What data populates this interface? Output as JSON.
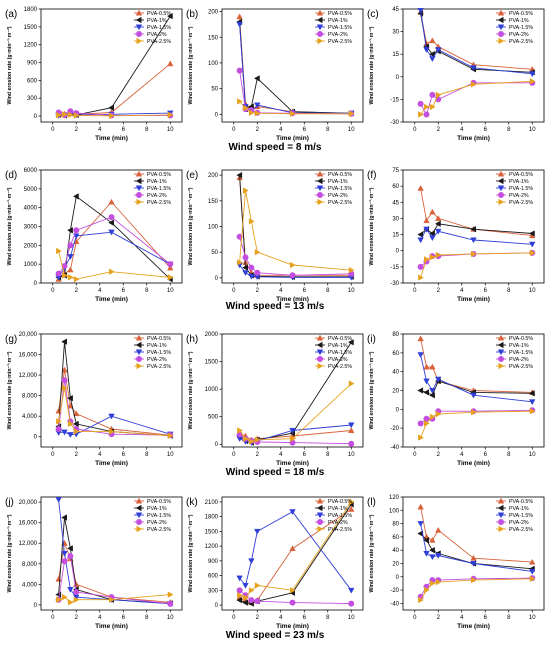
{
  "row_captions": [
    "Wind speed = 8 m/s",
    "Wind speed = 13 m/s",
    "Wind speed = 18 m/s",
    "Wind speed = 23 m/s"
  ],
  "colors": {
    "PVA-0.5%": "#d9623b",
    "PVA-1%": "#1a1a1a",
    "PVA-1.5%": "#2f3fd8",
    "PVA-2%": "#c44ee0",
    "PVA-2.5%": "#e6a21f"
  },
  "markers": {
    "PVA-0.5%": "triangle-up-icon",
    "PVA-1%": "triangle-left-icon",
    "PVA-1.5%": "triangle-down-icon",
    "PVA-2%": "circle-icon",
    "PVA-2.5%": "triangle-right-icon"
  },
  "chart_data": [
    {
      "panel": "(a)",
      "type": "line",
      "xlabel": "Time (min)",
      "ylabel": "Wind erosion rate (g·min⁻¹·m⁻²)",
      "xlim": [
        -1,
        11
      ],
      "ylim": [
        -100,
        1800
      ],
      "xticks": [
        0,
        2,
        4,
        6,
        8,
        10
      ],
      "yticks": [
        0,
        300,
        600,
        900,
        1200,
        1500,
        1800
      ],
      "yticklabels": [
        "0",
        "300",
        "600",
        "900",
        "1200",
        "1500",
        "1800"
      ],
      "x": [
        0.5,
        1,
        1.5,
        2,
        5,
        10
      ],
      "series": [
        {
          "name": "PVA-0.5%",
          "values": [
            20,
            35,
            40,
            30,
            60,
            880
          ]
        },
        {
          "name": "PVA-1%",
          "values": [
            30,
            10,
            50,
            20,
            140,
            1680
          ]
        },
        {
          "name": "PVA-1.5%",
          "values": [
            10,
            20,
            60,
            15,
            30,
            50
          ]
        },
        {
          "name": "PVA-2%",
          "values": [
            60,
            15,
            80,
            50,
            10,
            10
          ]
        },
        {
          "name": "PVA-2.5%",
          "values": [
            15,
            30,
            20,
            10,
            5,
            20
          ]
        }
      ]
    },
    {
      "panel": "(b)",
      "type": "line",
      "xlabel": "Time (min)",
      "ylabel": "Wind erosion rate (g·min⁻¹·m⁻²)",
      "xlim": [
        -1,
        11
      ],
      "ylim": [
        -15,
        205
      ],
      "xticks": [
        0,
        2,
        4,
        6,
        8,
        10
      ],
      "yticks": [
        0,
        50,
        100,
        150,
        200
      ],
      "yticklabels": [
        "0",
        "50",
        "100",
        "150",
        "200"
      ],
      "x": [
        0.5,
        1,
        1.5,
        2,
        5,
        10
      ],
      "series": [
        {
          "name": "PVA-0.5%",
          "values": [
            190,
            20,
            10,
            15,
            5,
            2
          ]
        },
        {
          "name": "PVA-1%",
          "values": [
            180,
            10,
            15,
            70,
            5,
            2
          ]
        },
        {
          "name": "PVA-1.5%",
          "values": [
            175,
            15,
            5,
            18,
            3,
            2
          ]
        },
        {
          "name": "PVA-2%",
          "values": [
            85,
            10,
            8,
            3,
            2,
            1
          ]
        },
        {
          "name": "PVA-2.5%",
          "values": [
            25,
            12,
            3,
            2,
            1,
            1
          ]
        }
      ]
    },
    {
      "panel": "(c)",
      "type": "line",
      "xlabel": "Time (min)",
      "ylabel": "Wind erosion rate (g·min⁻¹·m⁻²)",
      "xlim": [
        -1,
        11
      ],
      "ylim": [
        -30,
        45
      ],
      "xticks": [
        0,
        2,
        4,
        6,
        8,
        10
      ],
      "yticks": [
        -30,
        -15,
        0,
        15,
        30,
        45
      ],
      "yticklabels": [
        "-30",
        "-15",
        "0",
        "15",
        "30",
        "45"
      ],
      "x": [
        0.5,
        1,
        1.5,
        2,
        5,
        10
      ],
      "series": [
        {
          "name": "PVA-0.5%",
          "values": [
            43,
            22,
            24,
            20,
            8,
            5
          ]
        },
        {
          "name": "PVA-1%",
          "values": [
            42,
            20,
            15,
            17,
            5,
            3
          ]
        },
        {
          "name": "PVA-1.5%",
          "values": [
            44,
            18,
            12,
            18,
            6,
            2
          ]
        },
        {
          "name": "PVA-2%",
          "values": [
            -18,
            -25,
            -12,
            -15,
            -4,
            -4
          ]
        },
        {
          "name": "PVA-2.5%",
          "values": [
            -25,
            -20,
            -20,
            -12,
            -5,
            -3
          ]
        }
      ]
    },
    {
      "panel": "(d)",
      "type": "line",
      "xlabel": "Time (min)",
      "ylabel": "Wind erosion rate (g·min⁻¹·m⁻²)",
      "xlim": [
        -1,
        11
      ],
      "ylim": [
        0,
        6000
      ],
      "xticks": [
        0,
        2,
        4,
        6,
        8,
        10
      ],
      "yticks": [
        0,
        1000,
        2000,
        3000,
        4000,
        5000,
        6000
      ],
      "yticklabels": [
        "0",
        "1000",
        "2000",
        "3000",
        "4000",
        "5000",
        "6000"
      ],
      "x": [
        0.5,
        1,
        1.5,
        2,
        5,
        10
      ],
      "series": [
        {
          "name": "PVA-0.5%",
          "values": [
            200,
            500,
            700,
            2200,
            4300,
            800
          ]
        },
        {
          "name": "PVA-1%",
          "values": [
            300,
            400,
            2800,
            4600,
            3200,
            200
          ]
        },
        {
          "name": "PVA-1.5%",
          "values": [
            300,
            800,
            1400,
            2500,
            2700,
            1000
          ]
        },
        {
          "name": "PVA-2%",
          "values": [
            500,
            900,
            2000,
            2800,
            3500,
            1000
          ]
        },
        {
          "name": "PVA-2.5%",
          "values": [
            1700,
            400,
            300,
            200,
            600,
            300
          ]
        }
      ]
    },
    {
      "panel": "(e)",
      "type": "line",
      "xlabel": "Time (min)",
      "ylabel": "Wind erosion rate (g·min⁻¹·m⁻²)",
      "xlim": [
        -1,
        11
      ],
      "ylim": [
        -10,
        210
      ],
      "xticks": [
        0,
        2,
        4,
        6,
        8,
        10
      ],
      "yticks": [
        0,
        50,
        100,
        150,
        200
      ],
      "yticklabels": [
        "0",
        "50",
        "100",
        "150",
        "200"
      ],
      "x": [
        0.5,
        1,
        1.5,
        2,
        5,
        10
      ],
      "series": [
        {
          "name": "PVA-0.5%",
          "values": [
            195,
            30,
            10,
            5,
            5,
            5
          ]
        },
        {
          "name": "PVA-1%",
          "values": [
            200,
            20,
            5,
            3,
            2,
            2
          ]
        },
        {
          "name": "PVA-1.5%",
          "values": [
            25,
            10,
            3,
            2,
            1,
            1
          ]
        },
        {
          "name": "PVA-2%",
          "values": [
            80,
            40,
            20,
            10,
            5,
            8
          ]
        },
        {
          "name": "PVA-2.5%",
          "values": [
            30,
            170,
            110,
            50,
            25,
            15
          ]
        }
      ]
    },
    {
      "panel": "(f)",
      "type": "line",
      "xlabel": "Time (min)",
      "ylabel": "Wind erosion rate (g·min⁻¹·m⁻²)",
      "xlim": [
        -1,
        11
      ],
      "ylim": [
        -30,
        75
      ],
      "xticks": [
        0,
        2,
        4,
        6,
        8,
        10
      ],
      "yticks": [
        -30,
        -15,
        0,
        15,
        30,
        45,
        60,
        75
      ],
      "yticklabels": [
        "-30",
        "-15",
        "0",
        "15",
        "30",
        "45",
        "60",
        "75"
      ],
      "x": [
        0.5,
        1,
        1.5,
        2,
        5,
        10
      ],
      "series": [
        {
          "name": "PVA-0.5%",
          "values": [
            58,
            28,
            36,
            30,
            20,
            14
          ]
        },
        {
          "name": "PVA-1%",
          "values": [
            15,
            20,
            16,
            25,
            20,
            16
          ]
        },
        {
          "name": "PVA-1.5%",
          "values": [
            10,
            20,
            12,
            18,
            10,
            6
          ]
        },
        {
          "name": "PVA-2%",
          "values": [
            -15,
            -10,
            -5,
            -5,
            -3,
            -2
          ]
        },
        {
          "name": "PVA-2.5%",
          "values": [
            -25,
            -8,
            -6,
            -4,
            -3,
            -2
          ]
        }
      ]
    },
    {
      "panel": "(g)",
      "type": "line",
      "xlabel": "Time (min)",
      "ylabel": "Wind erosion rate (g·min⁻¹·m⁻²)",
      "xlim": [
        -1,
        11
      ],
      "ylim": [
        -2000,
        20000
      ],
      "xticks": [
        0,
        2,
        4,
        6,
        8,
        10
      ],
      "yticks": [
        0,
        4000,
        8000,
        12000,
        16000,
        20000
      ],
      "yticklabels": [
        "0",
        "4,000",
        "8,000",
        "12,000",
        "16,000",
        "20,000"
      ],
      "x": [
        0.5,
        1,
        1.5,
        2,
        5,
        10
      ],
      "series": [
        {
          "name": "PVA-0.5%",
          "values": [
            5000,
            13000,
            6000,
            4500,
            1500,
            300
          ]
        },
        {
          "name": "PVA-1%",
          "values": [
            2000,
            18500,
            7500,
            2500,
            1000,
            200
          ]
        },
        {
          "name": "PVA-1.5%",
          "values": [
            800,
            900,
            400,
            500,
            4000,
            500
          ]
        },
        {
          "name": "PVA-2%",
          "values": [
            1500,
            11000,
            3000,
            1500,
            500,
            300
          ]
        },
        {
          "name": "PVA-2.5%",
          "values": [
            3000,
            9500,
            2500,
            1000,
            1000,
            200
          ]
        }
      ]
    },
    {
      "panel": "(h)",
      "type": "line",
      "xlabel": "Time (min)",
      "ylabel": "Wind erosion rate (g·min⁻¹·m⁻²)",
      "xlim": [
        -1,
        11
      ],
      "ylim": [
        -50,
        2000
      ],
      "xticks": [
        0,
        2,
        4,
        6,
        8,
        10
      ],
      "yticks": [
        0,
        500,
        1000,
        1500,
        2000
      ],
      "yticklabels": [
        "0",
        "500",
        "1000",
        "1500",
        "2000"
      ],
      "x": [
        0.5,
        1,
        1.5,
        2,
        5,
        10
      ],
      "series": [
        {
          "name": "PVA-0.5%",
          "values": [
            200,
            150,
            80,
            100,
            150,
            250
          ]
        },
        {
          "name": "PVA-1%",
          "values": [
            150,
            60,
            30,
            80,
            200,
            1850
          ]
        },
        {
          "name": "PVA-1.5%",
          "values": [
            100,
            50,
            30,
            60,
            250,
            350
          ]
        },
        {
          "name": "PVA-2%",
          "values": [
            180,
            100,
            60,
            40,
            30,
            10
          ]
        },
        {
          "name": "PVA-2.5%",
          "values": [
            250,
            100,
            50,
            80,
            100,
            1100
          ]
        }
      ]
    },
    {
      "panel": "(i)",
      "type": "line",
      "xlabel": "Time (min)",
      "ylabel": "Wind erosion rate (g·min⁻¹·m⁻²)",
      "xlim": [
        -1,
        11
      ],
      "ylim": [
        -40,
        80
      ],
      "xticks": [
        0,
        2,
        4,
        6,
        8,
        10
      ],
      "yticks": [
        -40,
        -20,
        0,
        20,
        40,
        60,
        80
      ],
      "yticklabels": [
        "-40",
        "-20",
        "0",
        "20",
        "40",
        "60",
        "80"
      ],
      "x": [
        0.5,
        1,
        1.5,
        2,
        5,
        10
      ],
      "series": [
        {
          "name": "PVA-0.5%",
          "values": [
            75,
            45,
            45,
            30,
            20,
            18
          ]
        },
        {
          "name": "PVA-1%",
          "values": [
            20,
            18,
            15,
            30,
            18,
            17
          ]
        },
        {
          "name": "PVA-1.5%",
          "values": [
            58,
            30,
            20,
            32,
            15,
            8
          ]
        },
        {
          "name": "PVA-2%",
          "values": [
            -15,
            -10,
            -10,
            -2,
            -2,
            -1
          ]
        },
        {
          "name": "PVA-2.5%",
          "values": [
            -30,
            -15,
            -8,
            -5,
            -3,
            -2
          ]
        }
      ]
    },
    {
      "panel": "(j)",
      "type": "line",
      "xlabel": "Time (min)",
      "ylabel": "Wind erosion rate (g·min⁻¹·m⁻²)",
      "xlim": [
        -1,
        11
      ],
      "ylim": [
        -1000,
        21000
      ],
      "xticks": [
        0,
        2,
        4,
        6,
        8,
        10
      ],
      "yticks": [
        0,
        4000,
        8000,
        12000,
        16000,
        20000
      ],
      "yticklabels": [
        "0",
        "4,000",
        "8,000",
        "12,000",
        "16,000",
        "20,000"
      ],
      "x": [
        0.5,
        1,
        1.5,
        2,
        5,
        10
      ],
      "series": [
        {
          "name": "PVA-0.5%",
          "values": [
            5000,
            12000,
            9000,
            4000,
            1500,
            500
          ]
        },
        {
          "name": "PVA-1%",
          "values": [
            2000,
            17000,
            11000,
            3000,
            1000,
            300
          ]
        },
        {
          "name": "PVA-1.5%",
          "values": [
            20500,
            10000,
            3000,
            1500,
            1000,
            200
          ]
        },
        {
          "name": "PVA-2%",
          "values": [
            1000,
            8500,
            9500,
            2500,
            1500,
            200
          ]
        },
        {
          "name": "PVA-2.5%",
          "values": [
            1000,
            1500,
            500,
            1000,
            1000,
            2000
          ]
        }
      ]
    },
    {
      "panel": "(k)",
      "type": "line",
      "xlabel": "Time (min)",
      "ylabel": "Wind erosion rate (g·min⁻¹·m⁻²)",
      "xlim": [
        -1,
        11
      ],
      "ylim": [
        -100,
        2200
      ],
      "xticks": [
        0,
        2,
        4,
        6,
        8,
        10
      ],
      "yticks": [
        0,
        300,
        600,
        900,
        1200,
        1500,
        1800,
        2100
      ],
      "yticklabels": [
        "0",
        "300",
        "600",
        "900",
        "1200",
        "1500",
        "1800",
        "2100"
      ],
      "x": [
        0.5,
        1,
        1.5,
        2,
        5,
        10
      ],
      "series": [
        {
          "name": "PVA-0.5%",
          "values": [
            150,
            100,
            50,
            100,
            1150,
            1950
          ]
        },
        {
          "name": "PVA-1%",
          "values": [
            100,
            50,
            30,
            80,
            250,
            2050
          ]
        },
        {
          "name": "PVA-1.5%",
          "values": [
            550,
            400,
            900,
            1500,
            1900,
            300
          ]
        },
        {
          "name": "PVA-2%",
          "values": [
            300,
            200,
            100,
            80,
            50,
            30
          ]
        },
        {
          "name": "PVA-2.5%",
          "values": [
            200,
            150,
            300,
            400,
            300,
            2100
          ]
        }
      ]
    },
    {
      "panel": "(l)",
      "type": "line",
      "xlabel": "Time (min)",
      "ylabel": "Wind erosion rate (g·min⁻¹·m⁻²)",
      "xlim": [
        -1,
        11
      ],
      "ylim": [
        -50,
        120
      ],
      "xticks": [
        0,
        2,
        4,
        6,
        8,
        10
      ],
      "yticks": [
        -40,
        -20,
        0,
        20,
        40,
        60,
        80,
        100,
        120
      ],
      "yticklabels": [
        "-40",
        "-20",
        "0",
        "20",
        "40",
        "60",
        "80",
        "100",
        "120"
      ],
      "x": [
        0.5,
        1,
        1.5,
        2,
        5,
        10
      ],
      "series": [
        {
          "name": "PVA-0.5%",
          "values": [
            105,
            60,
            55,
            70,
            28,
            22
          ]
        },
        {
          "name": "PVA-1%",
          "values": [
            65,
            55,
            40,
            35,
            20,
            12
          ]
        },
        {
          "name": "PVA-1.5%",
          "values": [
            80,
            35,
            30,
            32,
            20,
            8
          ]
        },
        {
          "name": "PVA-2%",
          "values": [
            -30,
            -15,
            -5,
            -5,
            -3,
            -2
          ]
        },
        {
          "name": "PVA-2.5%",
          "values": [
            -35,
            -20,
            -10,
            -8,
            -5,
            -3
          ]
        }
      ]
    }
  ]
}
